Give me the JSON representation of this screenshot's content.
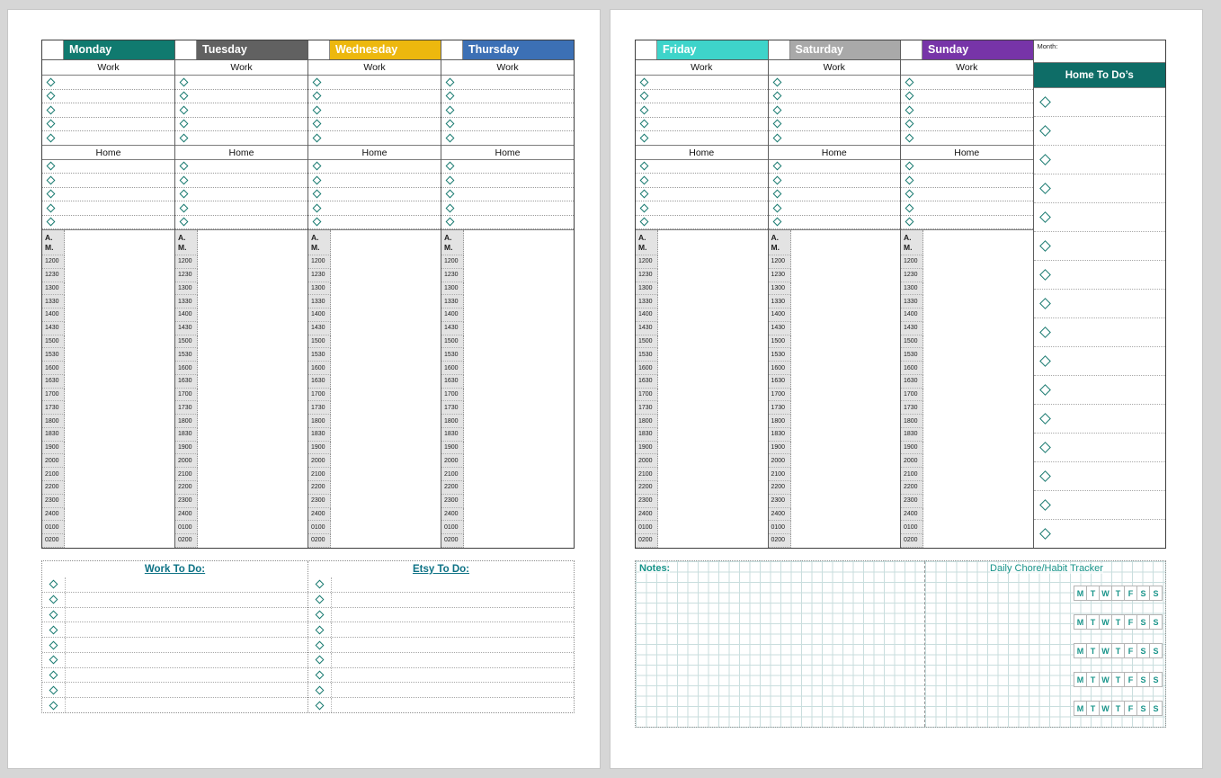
{
  "labels": {
    "work": "Work",
    "home": "Home",
    "am_line1": "A.",
    "am_line2": "M."
  },
  "times": [
    "1200",
    "1230",
    "1300",
    "1330",
    "1400",
    "1430",
    "1500",
    "1530",
    "1600",
    "1630",
    "1700",
    "1730",
    "1800",
    "1830",
    "1900",
    "2000",
    "2100",
    "2200",
    "2300",
    "2400",
    "0100",
    "0200"
  ],
  "left_page": {
    "days": [
      {
        "name": "Monday",
        "color": "#107a6f"
      },
      {
        "name": "Tuesday",
        "color": "#616161"
      },
      {
        "name": "Wednesday",
        "color": "#edb80e"
      },
      {
        "name": "Thursday",
        "color": "#3c70b5"
      }
    ],
    "todo_sections": [
      {
        "title": "Work To Do:"
      },
      {
        "title": "Etsy To Do:"
      }
    ]
  },
  "right_page": {
    "days": [
      {
        "name": "Friday",
        "color": "#3ed4ca"
      },
      {
        "name": "Saturday",
        "color": "#a9a9a9"
      },
      {
        "name": "Sunday",
        "color": "#7734a8"
      }
    ],
    "month_label": "Month:",
    "side_title": "Home To Do’s",
    "notes_label": "Notes:",
    "tracker_title": "Daily Chore/Habit Tracker",
    "tracker_days": [
      "M",
      "T",
      "W",
      "T",
      "F",
      "S",
      "S"
    ]
  },
  "layout": {
    "work_rows": 5,
    "home_rows": 5,
    "todo_rows": 9,
    "side_rows": 16,
    "tracker_rows": 5
  },
  "colors": {
    "accent_teal": "#17796f",
    "side_header": "#0e6d67",
    "todo_title": "#0d7285",
    "tracker_text": "#18948a",
    "grid_line": "#c9dede",
    "background": "#d6d6d6"
  }
}
